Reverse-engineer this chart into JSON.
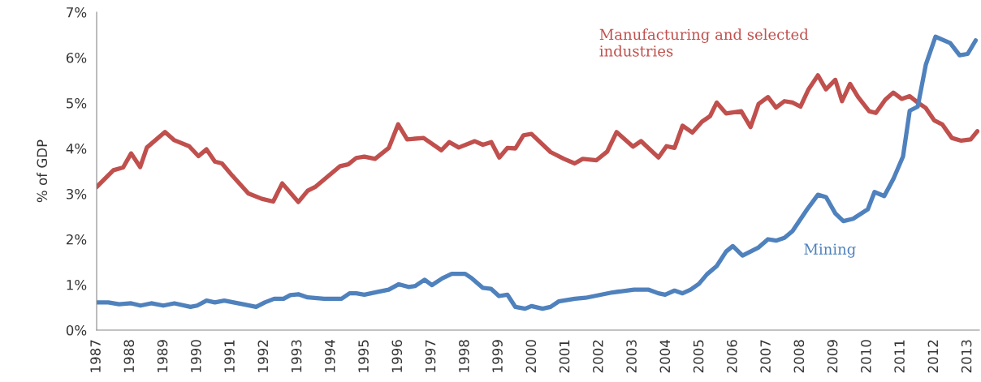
{
  "chart_data": {
    "type": "line",
    "ylabel": "% of GDP",
    "xlim": [
      1987,
      2013.35
    ],
    "xticks": [
      1987,
      1988,
      1989,
      1990,
      1991,
      1992,
      1993,
      1994,
      1995,
      1996,
      1997,
      1998,
      1999,
      2000,
      2001,
      2002,
      2003,
      2004,
      2005,
      2006,
      2007,
      2008,
      2009,
      2010,
      2011,
      2012,
      2013
    ],
    "ylim": [
      0,
      7
    ],
    "yticks": [
      {
        "value": 0,
        "label": "0%"
      },
      {
        "value": 1,
        "label": "1%"
      },
      {
        "value": 2,
        "label": "2%"
      },
      {
        "value": 3,
        "label": "3%"
      },
      {
        "value": 4,
        "label": "4%"
      },
      {
        "value": 5,
        "label": "5%"
      },
      {
        "value": 6,
        "label": "6%"
      },
      {
        "value": 7,
        "label": "7%"
      }
    ],
    "grid": false,
    "legend": false,
    "marker": "none",
    "line_style": "solid",
    "series": [
      {
        "name": "Manufacturing and selected\nindustries",
        "color": "#c0504d",
        "x": [
          1987.0,
          1987.5,
          1987.79,
          1988.03,
          1988.3,
          1988.5,
          1989.04,
          1989.32,
          1989.76,
          1990.04,
          1990.28,
          1990.53,
          1990.74,
          1991.05,
          1991.53,
          1991.93,
          1992.27,
          1992.54,
          1993.02,
          1993.3,
          1993.54,
          1994.27,
          1994.51,
          1994.75,
          1994.99,
          1995.31,
          1995.72,
          1996.0,
          1996.27,
          1996.76,
          1997.29,
          1997.53,
          1997.81,
          1998.29,
          1998.53,
          1998.78,
          1999.02,
          1999.26,
          1999.5,
          1999.74,
          1999.98,
          2000.55,
          2000.95,
          2001.27,
          2001.51,
          2001.92,
          2002.24,
          2002.52,
          2003.01,
          2003.25,
          2003.77,
          2004.01,
          2004.25,
          2004.49,
          2004.78,
          2005.07,
          2005.31,
          2005.51,
          2005.79,
          2006.24,
          2006.52,
          2006.76,
          2007.04,
          2007.28,
          2007.53,
          2007.77,
          2008.01,
          2008.25,
          2008.53,
          2008.77,
          2009.05,
          2009.25,
          2009.49,
          2009.73,
          2010.06,
          2010.26,
          2010.54,
          2010.78,
          2011.03,
          2011.27,
          2011.51,
          2011.75,
          2012.0,
          2012.24,
          2012.53,
          2012.81,
          2013.09,
          2013.29
        ],
        "values": [
          3.15,
          3.52,
          3.58,
          3.89,
          3.59,
          4.02,
          4.36,
          4.18,
          4.05,
          3.83,
          3.98,
          3.71,
          3.67,
          3.4,
          3.01,
          2.89,
          2.83,
          3.23,
          2.82,
          3.07,
          3.16,
          3.61,
          3.65,
          3.79,
          3.82,
          3.77,
          4.01,
          4.53,
          4.2,
          4.23,
          3.96,
          4.14,
          4.02,
          4.16,
          4.08,
          4.14,
          3.8,
          4.01,
          4.0,
          4.29,
          4.32,
          3.92,
          3.77,
          3.67,
          3.77,
          3.74,
          3.93,
          4.36,
          4.04,
          4.16,
          3.8,
          4.05,
          4.01,
          4.5,
          4.35,
          4.59,
          4.71,
          5.01,
          4.77,
          4.82,
          4.47,
          4.98,
          5.13,
          4.9,
          5.04,
          5.01,
          4.92,
          5.3,
          5.61,
          5.3,
          5.51,
          5.04,
          5.42,
          5.13,
          4.82,
          4.78,
          5.07,
          5.23,
          5.09,
          5.15,
          5.01,
          4.89,
          4.62,
          4.53,
          4.23,
          4.17,
          4.2,
          4.38
        ]
      },
      {
        "name": "Mining",
        "color": "#4f81bd",
        "x": [
          1987.0,
          1987.35,
          1987.67,
          1988.03,
          1988.31,
          1988.63,
          1988.99,
          1989.32,
          1989.8,
          1990.0,
          1990.28,
          1990.53,
          1990.81,
          1991.37,
          1991.76,
          1992.02,
          1992.3,
          1992.58,
          1992.78,
          1993.02,
          1993.3,
          1993.79,
          1994.31,
          1994.55,
          1994.75,
          1994.99,
          1995.39,
          1995.72,
          1996.02,
          1996.31,
          1996.51,
          1996.79,
          1997.01,
          1997.32,
          1997.6,
          1998.0,
          1998.2,
          1998.53,
          1998.77,
          1999.01,
          1999.26,
          1999.5,
          1999.79,
          1999.98,
          2000.31,
          2000.55,
          2000.79,
          2001.27,
          2001.59,
          2002.4,
          2003.04,
          2003.48,
          2003.77,
          2003.97,
          2004.25,
          2004.49,
          2004.73,
          2004.98,
          2005.22,
          2005.51,
          2005.79,
          2005.99,
          2006.28,
          2006.76,
          2007.04,
          2007.28,
          2007.53,
          2007.77,
          2008.21,
          2008.53,
          2008.77,
          2009.05,
          2009.29,
          2009.58,
          2010.02,
          2010.22,
          2010.51,
          2010.79,
          2011.07,
          2011.27,
          2011.51,
          2011.75,
          2012.04,
          2012.48,
          2012.76,
          2013.0,
          2013.24
        ],
        "values": [
          0.61,
          0.61,
          0.57,
          0.59,
          0.54,
          0.59,
          0.54,
          0.59,
          0.51,
          0.54,
          0.65,
          0.61,
          0.65,
          0.57,
          0.51,
          0.61,
          0.69,
          0.69,
          0.77,
          0.79,
          0.72,
          0.69,
          0.69,
          0.81,
          0.81,
          0.78,
          0.84,
          0.89,
          1.01,
          0.95,
          0.97,
          1.11,
          0.99,
          1.14,
          1.24,
          1.24,
          1.14,
          0.93,
          0.91,
          0.75,
          0.78,
          0.51,
          0.47,
          0.53,
          0.47,
          0.51,
          0.63,
          0.69,
          0.71,
          0.83,
          0.89,
          0.89,
          0.81,
          0.78,
          0.87,
          0.81,
          0.89,
          1.02,
          1.23,
          1.41,
          1.73,
          1.85,
          1.64,
          1.82,
          2.0,
          1.97,
          2.03,
          2.18,
          2.66,
          2.98,
          2.93,
          2.57,
          2.4,
          2.45,
          2.66,
          3.04,
          2.95,
          3.34,
          3.82,
          4.83,
          4.92,
          5.84,
          6.46,
          6.32,
          6.05,
          6.08,
          6.38
        ]
      }
    ]
  }
}
